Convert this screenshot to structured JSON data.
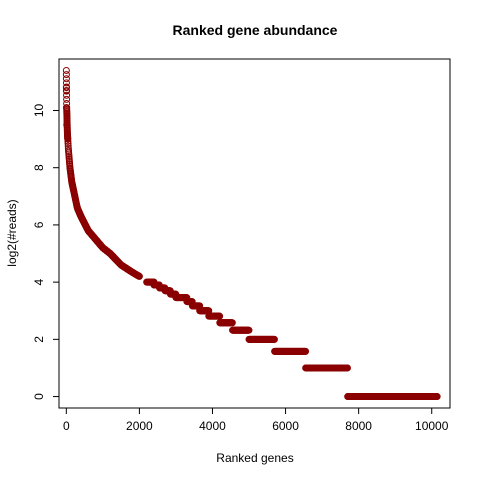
{
  "chart_data": {
    "type": "scatter",
    "title": "Ranked gene abundance",
    "xlabel": "Ranked genes",
    "ylabel": "log2(#reads)",
    "xlim": [
      -200,
      10500
    ],
    "ylim": [
      -0.4,
      11.8
    ],
    "x_ticks": [
      0,
      2000,
      4000,
      6000,
      8000,
      10000
    ],
    "y_ticks": [
      0,
      2,
      4,
      6,
      8,
      10
    ],
    "x_tick_labels": [
      "0",
      "2000",
      "4000",
      "6000",
      "8000",
      "10000"
    ],
    "y_tick_labels": [
      "0",
      "2",
      "4",
      "6",
      "8",
      "10"
    ],
    "marker_color": "#8b0000",
    "marker": "open-circle",
    "grid": false,
    "n_points": 10150,
    "curve": [
      {
        "rank": 1,
        "y": 11.4
      },
      {
        "rank": 10,
        "y": 10.1
      },
      {
        "rank": 30,
        "y": 9.2
      },
      {
        "rank": 60,
        "y": 8.6
      },
      {
        "rank": 100,
        "y": 8.0
      },
      {
        "rank": 150,
        "y": 7.5
      },
      {
        "rank": 200,
        "y": 7.2
      },
      {
        "rank": 300,
        "y": 6.6
      },
      {
        "rank": 400,
        "y": 6.3
      },
      {
        "rank": 600,
        "y": 5.8
      },
      {
        "rank": 800,
        "y": 5.5
      },
      {
        "rank": 1000,
        "y": 5.2
      },
      {
        "rank": 1200,
        "y": 5.0
      },
      {
        "rank": 1500,
        "y": 4.6
      },
      {
        "rank": 1800,
        "y": 4.35
      },
      {
        "rank": 2000,
        "y": 4.2
      }
    ],
    "outliers": [
      {
        "rank": 2,
        "y": 10.8
      },
      {
        "rank": 3,
        "y": 10.7
      },
      {
        "rank": 6,
        "y": 10.1
      },
      {
        "rank": 12,
        "y": 9.5
      }
    ],
    "plateaus": [
      {
        "y": 4.0,
        "x_start": 2200,
        "x_end": 2400
      },
      {
        "y": 3.9,
        "x_start": 2400,
        "x_end": 2550
      },
      {
        "y": 3.8,
        "x_start": 2550,
        "x_end": 2700
      },
      {
        "y": 3.7,
        "x_start": 2700,
        "x_end": 2850
      },
      {
        "y": 3.58,
        "x_start": 2850,
        "x_end": 3000
      },
      {
        "y": 3.46,
        "x_start": 3000,
        "x_end": 3300
      },
      {
        "y": 3.32,
        "x_start": 3300,
        "x_end": 3450
      },
      {
        "y": 3.17,
        "x_start": 3450,
        "x_end": 3650
      },
      {
        "y": 3.0,
        "x_start": 3650,
        "x_end": 3900
      },
      {
        "y": 2.81,
        "x_start": 3900,
        "x_end": 4200
      },
      {
        "y": 2.58,
        "x_start": 4200,
        "x_end": 4550
      },
      {
        "y": 2.32,
        "x_start": 4550,
        "x_end": 5000
      },
      {
        "y": 2.0,
        "x_start": 5000,
        "x_end": 5700
      },
      {
        "y": 1.58,
        "x_start": 5700,
        "x_end": 6550
      },
      {
        "y": 1.0,
        "x_start": 6550,
        "x_end": 7700
      },
      {
        "y": 0.0,
        "x_start": 7700,
        "x_end": 10150
      }
    ]
  }
}
